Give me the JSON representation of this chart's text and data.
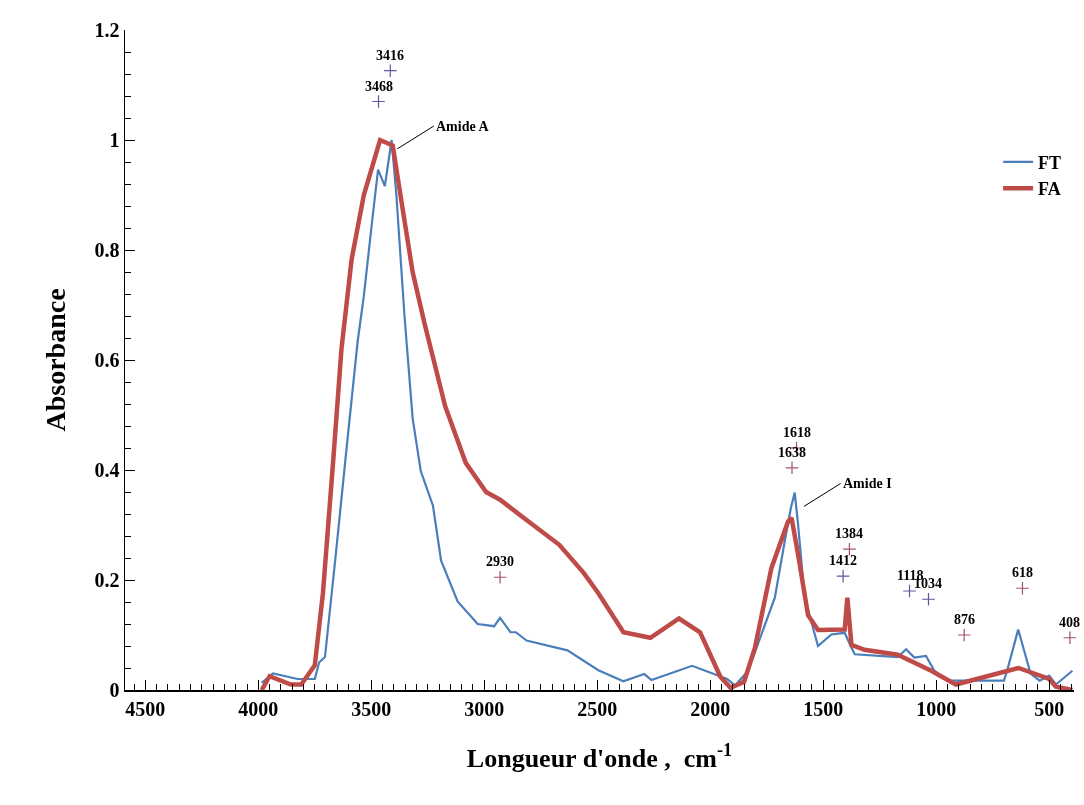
{
  "chart_data": {
    "type": "line",
    "xlabel": "Longueur d'onde ,  cm$^{-1}$",
    "ylabel": "Absorbance",
    "xlim": [
      4590,
      390
    ],
    "xticks": [
      4500,
      4000,
      3500,
      3000,
      2500,
      2000,
      1500,
      1000,
      500
    ],
    "ylim": [
      0,
      1.2
    ],
    "yticks": [
      0,
      0.2,
      0.4,
      0.6,
      0.8,
      1,
      1.2
    ],
    "grid": false,
    "legend": "right",
    "series": [
      {
        "name": "FT",
        "color": "#4a7ebb",
        "x": [
          3985,
          3935,
          3826,
          3750,
          3731,
          3705,
          3660,
          3605,
          3560,
          3533,
          3497,
          3470,
          3440,
          3410,
          3389,
          3353,
          3317,
          3281,
          3227,
          3191,
          3118,
          3029,
          2956,
          2930,
          2884,
          2860,
          2813,
          2632,
          2495,
          2384,
          2292,
          2260,
          2080,
          1925,
          1890,
          1832,
          1714,
          1670,
          1643,
          1626,
          1611,
          1582,
          1523,
          1464,
          1405,
          1375,
          1360,
          1170,
          1133,
          1097,
          1045,
          1008,
          950,
          700,
          684,
          637,
          582,
          542,
          500,
          470,
          397
        ],
        "values": [
          0.013,
          0.03,
          0.02,
          0.02,
          0.05,
          0.06,
          0.235,
          0.457,
          0.635,
          0.716,
          0.85,
          0.946,
          0.916,
          1.0,
          0.9,
          0.68,
          0.494,
          0.398,
          0.335,
          0.235,
          0.161,
          0.12,
          0.116,
          0.131,
          0.105,
          0.105,
          0.09,
          0.072,
          0.036,
          0.016,
          0.029,
          0.018,
          0.044,
          0.02,
          0.008,
          0.035,
          0.168,
          0.271,
          0.331,
          0.359,
          0.3,
          0.168,
          0.08,
          0.101,
          0.104,
          0.077,
          0.065,
          0.06,
          0.074,
          0.059,
          0.062,
          0.035,
          0.017,
          0.017,
          0.038,
          0.11,
          0.03,
          0.017,
          0.026,
          0.01,
          0.035
        ]
      },
      {
        "name": "FA",
        "color": "#be4b48",
        "x": [
          3985,
          3950,
          3856,
          3810,
          3750,
          3714,
          3668,
          3632,
          3587,
          3533,
          3461,
          3405,
          3371,
          3317,
          3263,
          3227,
          3173,
          3082,
          2992,
          2930,
          2813,
          2668,
          2560,
          2495,
          2384,
          2265,
          2138,
          2045,
          1955,
          1910,
          1850,
          1802,
          1729,
          1655,
          1640,
          1611,
          1567,
          1523,
          1405,
          1393,
          1375,
          1317,
          1170,
          1022,
          913,
          635,
          500,
          470,
          397
        ],
        "values": [
          0,
          0.025,
          0.01,
          0.01,
          0.045,
          0.176,
          0.42,
          0.62,
          0.783,
          0.9,
          1.0,
          0.99,
          0.9,
          0.76,
          0.664,
          0.605,
          0.516,
          0.413,
          0.36,
          0.346,
          0.309,
          0.264,
          0.213,
          0.176,
          0.105,
          0.095,
          0.13,
          0.105,
          0.024,
          0.004,
          0.015,
          0.077,
          0.222,
          0.307,
          0.313,
          0.246,
          0.136,
          0.109,
          0.11,
          0.168,
          0.082,
          0.073,
          0.064,
          0.035,
          0.01,
          0.04,
          0.02,
          0.006,
          0
        ]
      },
      {
        "type": "scatter",
        "marker": "cross",
        "x": [
          3468,
          3416,
          2930,
          1638,
          1618,
          1412,
          1384,
          1118,
          1034,
          876,
          618,
          408
        ],
        "values": [
          1.07,
          1.126,
          0.205,
          0.404,
          0.44,
          0.207,
          0.256,
          0.18,
          0.165,
          0.1,
          0.185,
          0.095
        ],
        "colors": [
          "#5a5aa0",
          "#5a5aa0",
          "#a0506e",
          "#a0506e",
          "#a0506e",
          "#5a5aa0",
          "#a0506e",
          "#5a5aa0",
          "#5a5aa0",
          "#a0506e",
          "#a0506e",
          "#a0506e"
        ]
      }
    ],
    "annotations": [
      {
        "text": "Amide A",
        "x": 3400,
        "y": 0.98
      },
      {
        "text": "Amide I",
        "x": 1600,
        "y": 0.33
      },
      {
        "text": "3468",
        "x": 3468,
        "y": 1.07
      },
      {
        "text": "3416",
        "x": 3416,
        "y": 1.126
      },
      {
        "text": "2930",
        "x": 2930,
        "y": 0.205
      },
      {
        "text": "1638",
        "x": 1638,
        "y": 0.404
      },
      {
        "text": "1618",
        "x": 1618,
        "y": 0.44
      },
      {
        "text": "1412",
        "x": 1412,
        "y": 0.207
      },
      {
        "text": "1384",
        "x": 1384,
        "y": 0.256
      },
      {
        "text": "1118",
        "x": 1118,
        "y": 0.18
      },
      {
        "text": "1034",
        "x": 1034,
        "y": 0.165
      },
      {
        "text": "876",
        "x": 876,
        "y": 0.1
      },
      {
        "text": "618",
        "x": 618,
        "y": 0.185
      },
      {
        "text": "408",
        "x": 408,
        "y": 0.095
      }
    ]
  }
}
